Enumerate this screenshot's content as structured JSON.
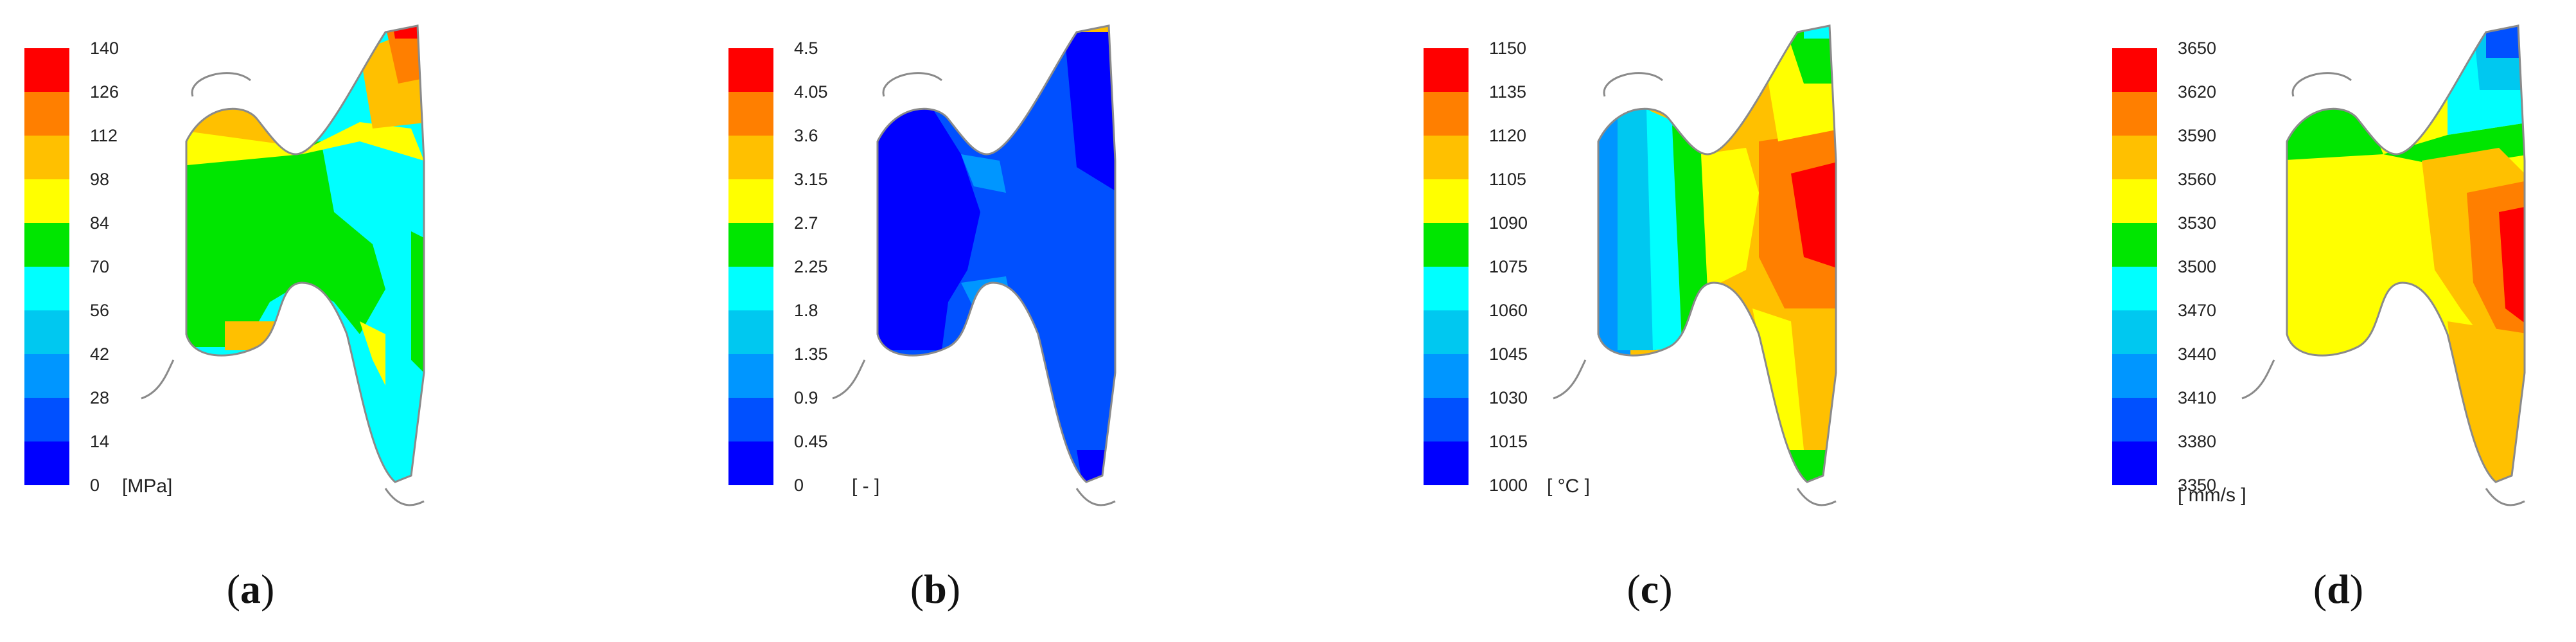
{
  "panels": [
    {
      "label": "a",
      "unit": "[MPa]",
      "ticks": [
        "140",
        "126",
        "112",
        "98",
        "84",
        "70",
        "56",
        "42",
        "28",
        "14",
        "0"
      ]
    },
    {
      "label": "b",
      "unit": "[ - ]",
      "ticks": [
        "4.5",
        "4.05",
        "3.6",
        "3.15",
        "2.7",
        "2.25",
        "1.8",
        "1.35",
        "0.9",
        "0.45",
        "0"
      ]
    },
    {
      "label": "c",
      "unit": "[ °C ]",
      "ticks": [
        "1150",
        "1135",
        "1120",
        "1105",
        "1090",
        "1075",
        "1060",
        "1045",
        "1030",
        "1015",
        "1000"
      ]
    },
    {
      "label": "d",
      "unit": "[ mm/s ]",
      "ticks": [
        "3650",
        "3620",
        "3590",
        "3560",
        "3530",
        "3500",
        "3470",
        "3440",
        "3410",
        "3380",
        "3350"
      ]
    }
  ],
  "colors": {
    "scale": [
      "#ff0000",
      "#ff7f00",
      "#ffc000",
      "#ffff00",
      "#00e600",
      "#00ffff",
      "#00c8f0",
      "#0096ff",
      "#0050ff",
      "#0000ff"
    ],
    "outline": "#8a8a8a"
  }
}
